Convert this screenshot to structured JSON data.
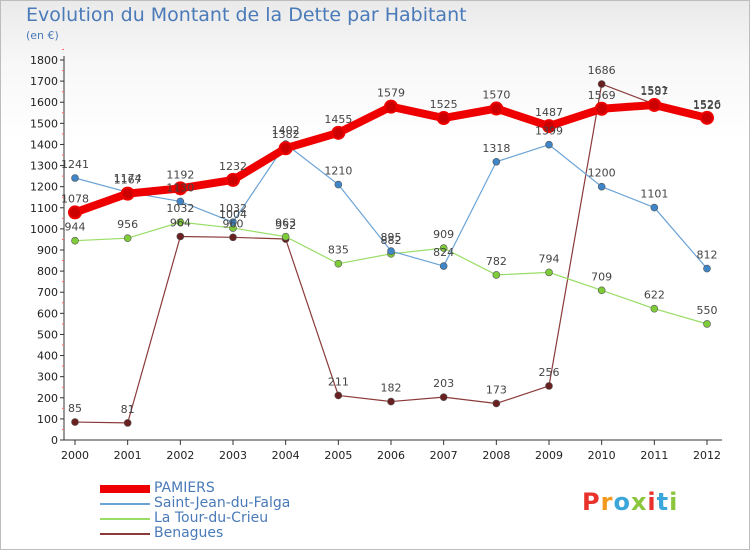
{
  "chart_data": {
    "type": "line",
    "title": "Evolution du Montant de la Dette par Habitant",
    "subtitle": "(en €)",
    "x": [
      "2000",
      "2001",
      "2002",
      "2003",
      "2004",
      "2005",
      "2006",
      "2007",
      "2008",
      "2009",
      "2010",
      "2011",
      "2012"
    ],
    "ylim": [
      0,
      1800
    ],
    "yticks": [
      0,
      100,
      200,
      300,
      400,
      500,
      600,
      700,
      800,
      900,
      1000,
      1100,
      1200,
      1300,
      1400,
      1500,
      1600,
      1700,
      1800
    ],
    "grid": false,
    "legend_position": "bottom-left",
    "series": [
      {
        "name": "PAMIERS",
        "color": "#ee0000",
        "width": 8,
        "marker": 6,
        "values": [
          1078,
          1167,
          1192,
          1232,
          1382,
          1455,
          1579,
          1525,
          1570,
          1487,
          1569,
          1587,
          1526
        ]
      },
      {
        "name": "Saint-Jean-du-Falga",
        "color": "#6ba3d6",
        "width": 1.2,
        "marker": 3.5,
        "markerColor": "#3f86c8",
        "values": [
          1241,
          1174,
          1130,
          1032,
          1402,
          1210,
          895,
          824,
          1318,
          1399,
          1200,
          1101,
          812
        ]
      },
      {
        "name": "La Tour-du-Crieu",
        "color": "#99dd66",
        "width": 1.2,
        "marker": 3.5,
        "markerColor": "#7fcc3a",
        "values": [
          944,
          956,
          1032,
          1004,
          963,
          835,
          882,
          909,
          782,
          794,
          709,
          622,
          550
        ]
      },
      {
        "name": "Benagues",
        "color": "#8b3a3a",
        "width": 1.2,
        "marker": 3.5,
        "markerColor": "#6b2020",
        "values": [
          85,
          81,
          964,
          960,
          952,
          211,
          182,
          203,
          173,
          256,
          1686,
          1591,
          1520
        ]
      }
    ]
  },
  "logo": {
    "text": "Proxiti",
    "colors": [
      "#e8322b",
      "#f39a1e",
      "#3aa6d9",
      "#8cc63e",
      "#e8322b",
      "#3aa6d9",
      "#8cc63e"
    ]
  }
}
